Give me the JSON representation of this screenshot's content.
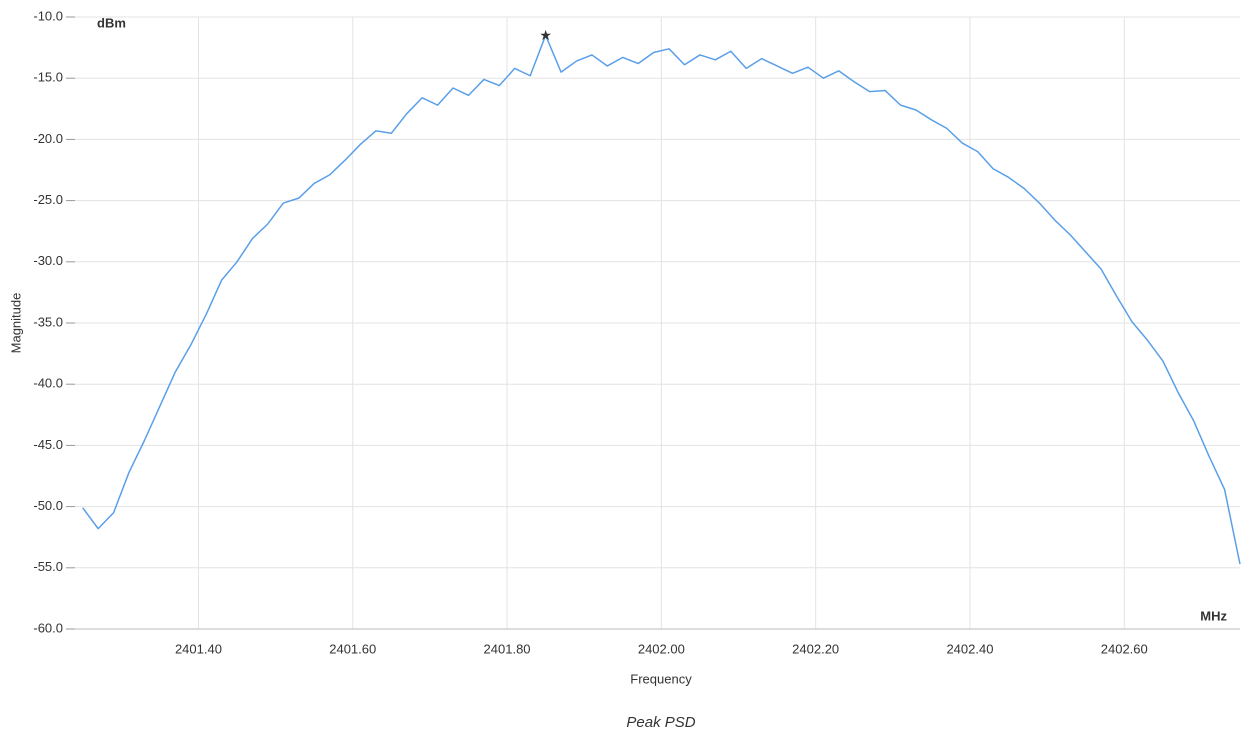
{
  "chart_data": {
    "type": "line",
    "title": "Peak PSD",
    "x_label": "Frequency",
    "y_label": "Magnitude",
    "x_unit": "MHz",
    "y_unit": "dBm",
    "x": [
      2401.25,
      2401.27,
      2401.29,
      2401.31,
      2401.33,
      2401.35,
      2401.37,
      2401.39,
      2401.41,
      2401.43,
      2401.45,
      2401.47,
      2401.49,
      2401.51,
      2401.53,
      2401.55,
      2401.57,
      2401.59,
      2401.61,
      2401.63,
      2401.65,
      2401.67,
      2401.69,
      2401.71,
      2401.73,
      2401.75,
      2401.77,
      2401.79,
      2401.81,
      2401.83,
      2401.85,
      2401.87,
      2401.89,
      2401.91,
      2401.93,
      2401.95,
      2401.97,
      2401.99,
      2402.01,
      2402.03,
      2402.05,
      2402.07,
      2402.09,
      2402.11,
      2402.13,
      2402.15,
      2402.17,
      2402.19,
      2402.21,
      2402.23,
      2402.25,
      2402.27,
      2402.29,
      2402.31,
      2402.33,
      2402.35,
      2402.37,
      2402.39,
      2402.41,
      2402.43,
      2402.45,
      2402.47,
      2402.49,
      2402.51,
      2402.53,
      2402.55,
      2402.57,
      2402.59,
      2402.61,
      2402.63,
      2402.65,
      2402.67,
      2402.69,
      2402.71,
      2402.73,
      2402.75
    ],
    "series": [
      {
        "color": "#5a9fe8",
        "values": [
          -50.1,
          -51.8,
          -50.5,
          -47.2,
          -44.6,
          -41.8,
          -39.0,
          -36.8,
          -34.3,
          -31.5,
          -30.0,
          -28.1,
          -26.9,
          -25.2,
          -24.8,
          -23.6,
          -22.9,
          -21.7,
          -20.4,
          -19.3,
          -19.5,
          -17.9,
          -16.6,
          -17.2,
          -15.8,
          -16.4,
          -15.1,
          -15.6,
          -14.2,
          -14.8,
          -11.5,
          -14.5,
          -13.6,
          -13.1,
          -14.0,
          -13.3,
          -13.8,
          -12.9,
          -12.6,
          -13.9,
          -13.1,
          -13.5,
          -12.8,
          -14.2,
          -13.4,
          -14.0,
          -14.6,
          -14.1,
          -15.0,
          -14.4,
          -15.3,
          -16.1,
          -16.0,
          -17.2,
          -17.6,
          -18.4,
          -19.1,
          -20.3,
          -21.0,
          -22.4,
          -23.1,
          -24.0,
          -25.2,
          -26.6,
          -27.8,
          -29.2,
          -30.6,
          -32.8,
          -34.9,
          -36.4,
          -38.1,
          -40.7,
          -43.0,
          -45.9,
          -48.6,
          -54.7
        ]
      }
    ],
    "peak_index": 30,
    "xlim": [
      2401.24,
      2402.75
    ],
    "ylim": [
      -60,
      -10
    ],
    "xticks": [
      {
        "value": 2401.4,
        "label": "2401.40"
      },
      {
        "value": 2401.6,
        "label": "2401.60"
      },
      {
        "value": 2401.8,
        "label": "2401.80"
      },
      {
        "value": 2402.0,
        "label": "2402.00"
      },
      {
        "value": 2402.2,
        "label": "2402.20"
      },
      {
        "value": 2402.4,
        "label": "2402.40"
      },
      {
        "value": 2402.6,
        "label": "2402.60"
      }
    ],
    "yticks": [
      {
        "value": -10,
        "label": "-10.0"
      },
      {
        "value": -15,
        "label": "-15.0"
      },
      {
        "value": -20,
        "label": "-20.0"
      },
      {
        "value": -25,
        "label": "-25.0"
      },
      {
        "value": -30,
        "label": "-30.0"
      },
      {
        "value": -35,
        "label": "-35.0"
      },
      {
        "value": -40,
        "label": "-40.0"
      },
      {
        "value": -45,
        "label": "-45.0"
      },
      {
        "value": -50,
        "label": "-50.0"
      },
      {
        "value": -55,
        "label": "-55.0"
      },
      {
        "value": -60,
        "label": "-60.0"
      }
    ],
    "grid": true
  }
}
